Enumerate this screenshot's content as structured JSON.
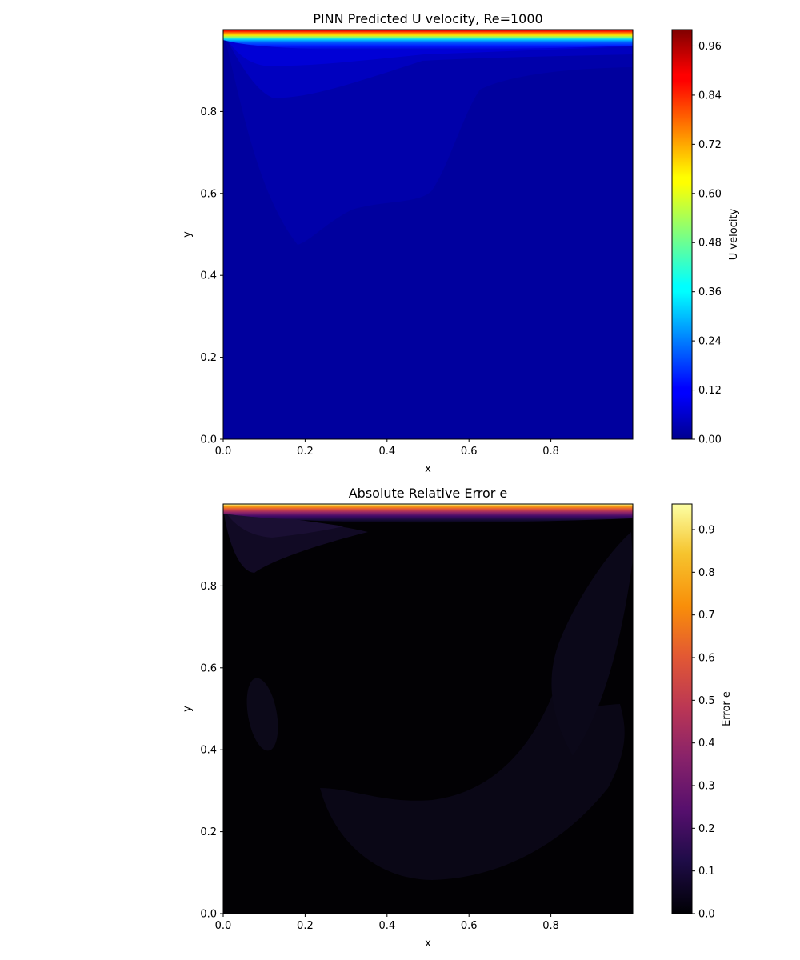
{
  "chart_data": [
    {
      "type": "heatmap",
      "title": "PINN Predicted U velocity, Re=1000",
      "xlabel": "x",
      "ylabel": "y",
      "xlim": [
        0,
        1
      ],
      "ylim": [
        0,
        1
      ],
      "x_ticks": [
        "0.0",
        "0.2",
        "0.4",
        "0.6",
        "0.8"
      ],
      "y_ticks": [
        "0.0",
        "0.2",
        "0.4",
        "0.6",
        "0.8"
      ],
      "colormap": "jet",
      "colorbar": {
        "label": "U velocity",
        "range": [
          0,
          1.0
        ],
        "ticks": [
          "0.00",
          "0.12",
          "0.24",
          "0.36",
          "0.48",
          "0.60",
          "0.72",
          "0.84",
          "0.96"
        ],
        "tick_values": [
          0,
          0.12,
          0.24,
          0.36,
          0.48,
          0.6,
          0.72,
          0.84,
          0.96
        ]
      },
      "field_description": {
        "lid_value_at_y1": 1.0,
        "interior_value": 0.0,
        "lobe_value": 0.04,
        "upper_lobe_value": 0.1
      }
    },
    {
      "type": "heatmap",
      "title": "Absolute Relative Error e",
      "xlabel": "x",
      "ylabel": "y",
      "xlim": [
        0,
        1
      ],
      "ylim": [
        0,
        1
      ],
      "x_ticks": [
        "0.0",
        "0.2",
        "0.4",
        "0.6",
        "0.8"
      ],
      "y_ticks": [
        "0.0",
        "0.2",
        "0.4",
        "0.6",
        "0.8"
      ],
      "colormap": "inferno",
      "colorbar": {
        "label": "Error e",
        "range": [
          0,
          0.96
        ],
        "ticks": [
          "0.0",
          "0.1",
          "0.2",
          "0.3",
          "0.4",
          "0.5",
          "0.6",
          "0.7",
          "0.8",
          "0.9"
        ],
        "tick_values": [
          0,
          0.1,
          0.2,
          0.3,
          0.4,
          0.5,
          0.6,
          0.7,
          0.8,
          0.9
        ]
      },
      "field_description": {
        "lid_value_at_y1": 0.96,
        "interior_value": 0.0,
        "faint_region_value": 0.04
      }
    }
  ]
}
